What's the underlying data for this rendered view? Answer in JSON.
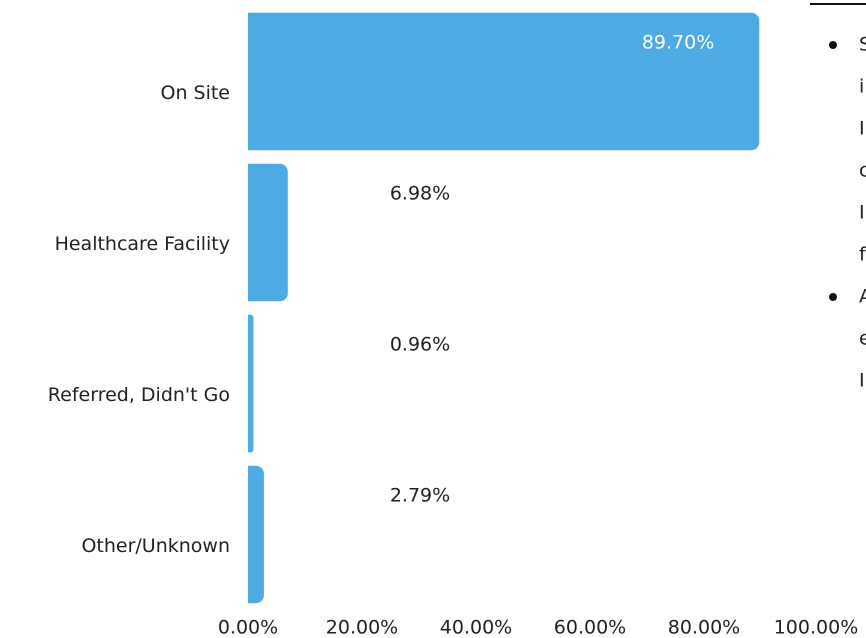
{
  "chart_data": {
    "type": "hbar",
    "categories": [
      "On Site",
      "Healthcare Facility",
      "Referred, Didn't Go",
      "Other/Unknown"
    ],
    "values": [
      89.7,
      6.98,
      0.96,
      2.79
    ],
    "value_labels": [
      "89.70%",
      "6.98%",
      "0.96%",
      "2.79%"
    ],
    "color": "#4eaae3",
    "xlim": [
      0,
      100
    ],
    "xticks": [
      {
        "value": 0,
        "label": "0.00%"
      },
      {
        "value": 20,
        "label": "20.00%"
      },
      {
        "value": 40,
        "label": "40.00%"
      },
      {
        "value": 60,
        "label": "60.00%"
      },
      {
        "value": 80,
        "label": "80.00%"
      },
      {
        "value": 100,
        "label": "100.00%"
      }
    ],
    "grid": false
  },
  "side_list": [
    [
      "S",
      "i",
      "I",
      "c",
      "I",
      "f"
    ],
    [
      "A",
      "e",
      "I"
    ]
  ]
}
